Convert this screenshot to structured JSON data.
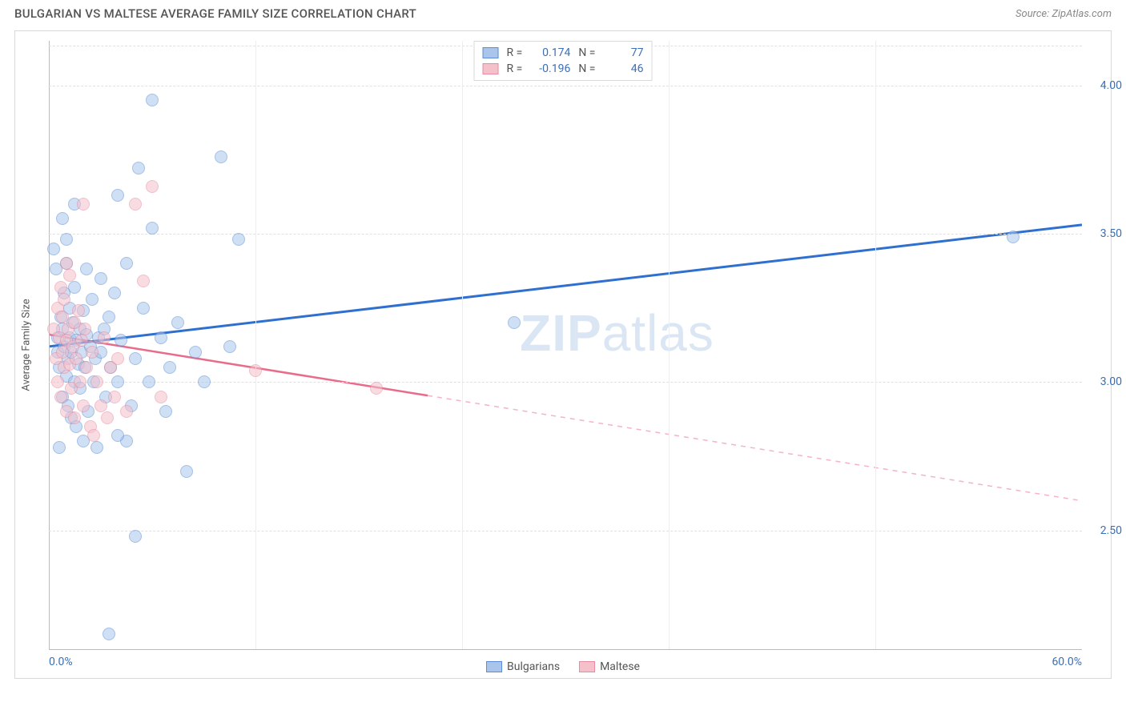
{
  "header": {
    "title": "BULGARIAN VS MALTESE AVERAGE FAMILY SIZE CORRELATION CHART",
    "source_label": "Source:",
    "source_value": "ZipAtlas.com"
  },
  "chart": {
    "type": "scatter",
    "ylabel": "Average Family Size",
    "xlim": [
      0,
      60
    ],
    "ylim": [
      2.1,
      4.15
    ],
    "xticks": [
      {
        "pos": 0,
        "label": "0.0%",
        "align": "left"
      },
      {
        "pos": 60,
        "label": "60.0%",
        "align": "right"
      }
    ],
    "xgrid_positions": [
      12,
      24,
      36,
      48
    ],
    "yticks": [
      {
        "pos": 2.5,
        "label": "2.50"
      },
      {
        "pos": 3.0,
        "label": "3.00"
      },
      {
        "pos": 3.5,
        "label": "3.50"
      },
      {
        "pos": 4.0,
        "label": "4.00"
      }
    ],
    "background_color": "#ffffff",
    "grid_color": "#e0e0e0",
    "axis_color": "#bbbbbb",
    "point_radius": 8,
    "point_opacity": 0.55,
    "point_stroke_width": 1,
    "series": [
      {
        "name": "Bulgarians",
        "fill_color": "#a9c5ec",
        "stroke_color": "#5b8dd6",
        "line_color": "#2f6fd0",
        "line_width": 3,
        "r_value": "0.174",
        "n_value": "77",
        "trend": {
          "x1": 0,
          "y1": 3.12,
          "x2": 60,
          "y2": 3.53,
          "solid_until_x": 60
        },
        "points": [
          [
            0.3,
            3.45
          ],
          [
            0.4,
            3.38
          ],
          [
            0.5,
            3.15
          ],
          [
            0.5,
            3.1
          ],
          [
            0.6,
            3.05
          ],
          [
            0.6,
            2.78
          ],
          [
            0.7,
            3.22
          ],
          [
            0.8,
            3.18
          ],
          [
            0.8,
            2.95
          ],
          [
            0.9,
            3.3
          ],
          [
            0.9,
            3.12
          ],
          [
            1.0,
            3.4
          ],
          [
            1.0,
            3.02
          ],
          [
            1.1,
            3.08
          ],
          [
            1.1,
            2.92
          ],
          [
            1.2,
            3.25
          ],
          [
            1.2,
            3.15
          ],
          [
            1.3,
            3.1
          ],
          [
            1.3,
            2.88
          ],
          [
            1.4,
            3.2
          ],
          [
            1.5,
            3.32
          ],
          [
            1.5,
            3.0
          ],
          [
            1.6,
            3.14
          ],
          [
            1.6,
            2.85
          ],
          [
            1.7,
            3.06
          ],
          [
            1.8,
            3.18
          ],
          [
            1.8,
            2.98
          ],
          [
            1.9,
            3.1
          ],
          [
            2.0,
            3.24
          ],
          [
            2.1,
            3.05
          ],
          [
            2.2,
            3.16
          ],
          [
            2.3,
            2.9
          ],
          [
            2.4,
            3.12
          ],
          [
            2.5,
            3.28
          ],
          [
            2.6,
            3.0
          ],
          [
            2.7,
            3.08
          ],
          [
            2.8,
            2.78
          ],
          [
            2.9,
            3.15
          ],
          [
            3.0,
            3.35
          ],
          [
            3.0,
            3.1
          ],
          [
            3.2,
            3.18
          ],
          [
            3.3,
            2.95
          ],
          [
            3.5,
            3.22
          ],
          [
            3.6,
            3.05
          ],
          [
            3.8,
            3.3
          ],
          [
            4.0,
            3.0
          ],
          [
            4.0,
            3.63
          ],
          [
            4.2,
            3.14
          ],
          [
            4.5,
            2.8
          ],
          [
            4.5,
            3.4
          ],
          [
            4.8,
            2.92
          ],
          [
            5.0,
            3.08
          ],
          [
            5.0,
            2.48
          ],
          [
            5.2,
            3.72
          ],
          [
            5.5,
            3.25
          ],
          [
            5.8,
            3.0
          ],
          [
            6.0,
            3.95
          ],
          [
            6.0,
            3.52
          ],
          [
            6.5,
            3.15
          ],
          [
            6.8,
            2.9
          ],
          [
            7.0,
            3.05
          ],
          [
            7.5,
            3.2
          ],
          [
            8.0,
            2.7
          ],
          [
            8.5,
            3.1
          ],
          [
            9.0,
            3.0
          ],
          [
            10.0,
            3.76
          ],
          [
            10.5,
            3.12
          ],
          [
            11.0,
            3.48
          ],
          [
            27.0,
            3.2
          ],
          [
            56.0,
            3.49
          ],
          [
            3.5,
            2.15
          ],
          [
            2.0,
            2.8
          ],
          [
            1.5,
            3.6
          ],
          [
            0.8,
            3.55
          ],
          [
            4.0,
            2.82
          ],
          [
            1.0,
            3.48
          ],
          [
            2.2,
            3.38
          ]
        ]
      },
      {
        "name": "Maltese",
        "fill_color": "#f4c1cb",
        "stroke_color": "#e88ba0",
        "line_color": "#e86b8a",
        "line_width": 2.5,
        "r_value": "-0.196",
        "n_value": "46",
        "trend": {
          "x1": 0,
          "y1": 3.16,
          "x2": 60,
          "y2": 2.6,
          "solid_until_x": 22
        },
        "points": [
          [
            0.3,
            3.18
          ],
          [
            0.4,
            3.08
          ],
          [
            0.5,
            3.25
          ],
          [
            0.5,
            3.0
          ],
          [
            0.6,
            3.15
          ],
          [
            0.7,
            3.32
          ],
          [
            0.7,
            2.95
          ],
          [
            0.8,
            3.1
          ],
          [
            0.8,
            3.22
          ],
          [
            0.9,
            3.05
          ],
          [
            0.9,
            3.28
          ],
          [
            1.0,
            3.14
          ],
          [
            1.0,
            2.9
          ],
          [
            1.1,
            3.18
          ],
          [
            1.2,
            3.06
          ],
          [
            1.2,
            3.36
          ],
          [
            1.3,
            2.98
          ],
          [
            1.4,
            3.12
          ],
          [
            1.5,
            3.2
          ],
          [
            1.5,
            2.88
          ],
          [
            1.6,
            3.08
          ],
          [
            1.7,
            3.24
          ],
          [
            1.8,
            3.0
          ],
          [
            1.9,
            3.14
          ],
          [
            2.0,
            2.92
          ],
          [
            2.1,
            3.18
          ],
          [
            2.2,
            3.05
          ],
          [
            2.4,
            2.85
          ],
          [
            2.5,
            3.1
          ],
          [
            2.6,
            2.82
          ],
          [
            2.8,
            3.0
          ],
          [
            3.0,
            2.92
          ],
          [
            3.2,
            3.15
          ],
          [
            3.4,
            2.88
          ],
          [
            3.6,
            3.05
          ],
          [
            3.8,
            2.95
          ],
          [
            4.0,
            3.08
          ],
          [
            4.5,
            2.9
          ],
          [
            5.0,
            3.6
          ],
          [
            5.5,
            3.34
          ],
          [
            6.0,
            3.66
          ],
          [
            6.5,
            2.95
          ],
          [
            12.0,
            3.04
          ],
          [
            19.0,
            2.98
          ],
          [
            1.0,
            3.4
          ],
          [
            2.0,
            3.6
          ]
        ]
      }
    ]
  },
  "legend_top": {
    "r_label": "R =",
    "n_label": "N ="
  },
  "legend_bottom": {
    "items": [
      "Bulgarians",
      "Maltese"
    ]
  },
  "watermark": {
    "text_bold": "ZIP",
    "text_rest": "atlas"
  }
}
